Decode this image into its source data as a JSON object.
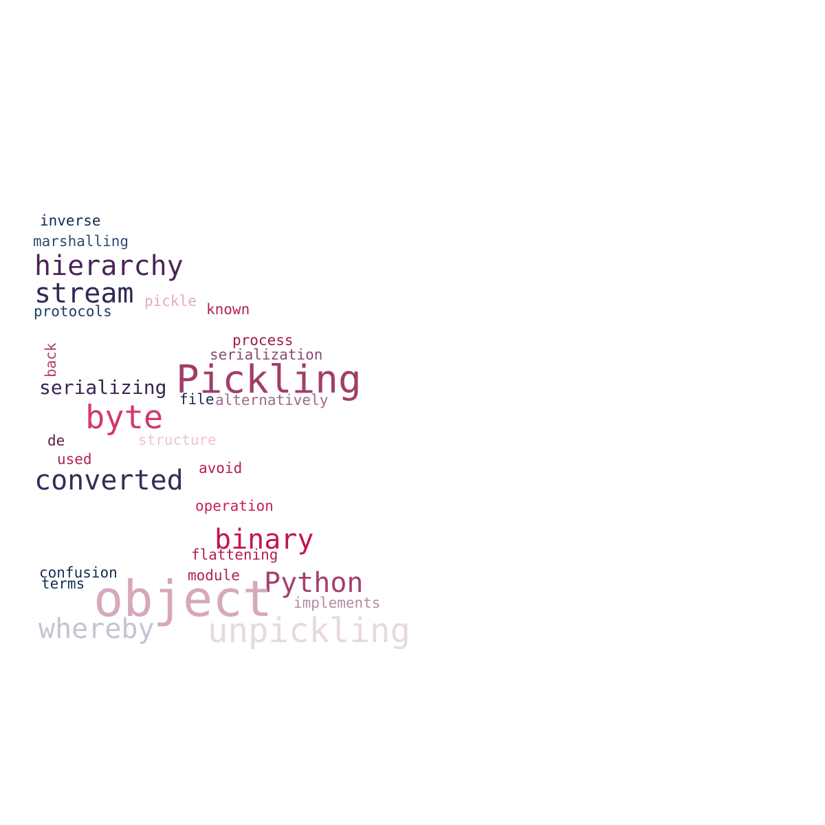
{
  "words": {
    "inverse": {
      "text": "inverse",
      "color": "#0b2a52"
    },
    "marshalling": {
      "text": "marshalling",
      "color": "#2e4a6e"
    },
    "hierarchy": {
      "text": "hierarchy",
      "color": "#4a2456"
    },
    "stream": {
      "text": "stream",
      "color": "#2e2a55"
    },
    "pickle": {
      "text": "pickle",
      "color": "#e6a9c3"
    },
    "known": {
      "text": "known",
      "color": "#b5214f"
    },
    "protocols": {
      "text": "protocols",
      "color": "#1d3d63"
    },
    "process": {
      "text": "process",
      "color": "#a11a4a"
    },
    "serialization": {
      "text": "serialization",
      "color": "#8a4a72"
    },
    "back": {
      "text": "back",
      "color": "#b3446c"
    },
    "pickling": {
      "text": "Pickling",
      "color": "#a33d68"
    },
    "serializing": {
      "text": "serializing",
      "color": "#3a2550"
    },
    "file": {
      "text": "file",
      "color": "#1a2a4a"
    },
    "alternatively": {
      "text": "alternatively",
      "color": "#9a6a8a"
    },
    "byte": {
      "text": "byte",
      "color": "#d23a6a"
    },
    "de": {
      "text": "de",
      "color": "#5a2048"
    },
    "structure": {
      "text": "structure",
      "color": "#f0c2d2"
    },
    "used": {
      "text": "used",
      "color": "#b3214f"
    },
    "avoid": {
      "text": "avoid",
      "color": "#b81c4c"
    },
    "converted": {
      "text": "converted",
      "color": "#332e5a"
    },
    "operation": {
      "text": "operation",
      "color": "#c8214f"
    },
    "binary": {
      "text": "binary",
      "color": "#c21648"
    },
    "flattening": {
      "text": "flattening",
      "color": "#b3214f"
    },
    "confusion": {
      "text": "confusion",
      "color": "#0f2f55"
    },
    "module": {
      "text": "module",
      "color": "#b3214f"
    },
    "python": {
      "text": "Python",
      "color": "#a3406e"
    },
    "terms": {
      "text": "terms",
      "color": "#0f2f55"
    },
    "object": {
      "text": "object",
      "color": "#d6a7bd"
    },
    "implements": {
      "text": "implements",
      "color": "#b58aa5"
    },
    "whereby": {
      "text": "whereby",
      "color": "#c6c3d3"
    },
    "unpickling": {
      "text": "unpickling",
      "color": "#e7d8e1"
    }
  }
}
